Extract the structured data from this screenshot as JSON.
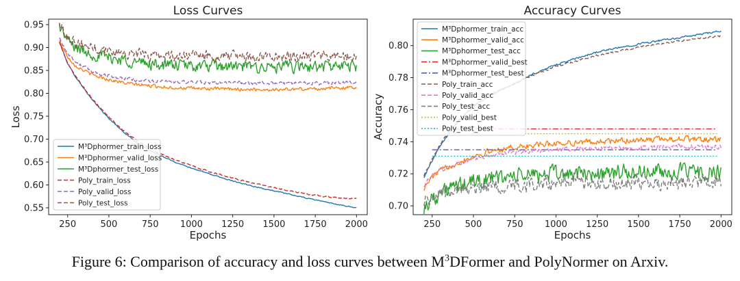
{
  "figure": {
    "caption_prefix": "Figure 6: Comparison of accuracy and loss curves between M",
    "caption_sup": "3",
    "caption_suffix": "DFormer and PolyNormer on Arxiv."
  },
  "chart_data": [
    {
      "type": "line",
      "title": "Loss Curves",
      "xlabel": "Epochs",
      "ylabel": "Loss",
      "xlim": [
        135,
        2065
      ],
      "ylim": [
        0.535,
        0.962
      ],
      "xticks": [
        250,
        500,
        750,
        1000,
        1250,
        1500,
        1750,
        2000
      ],
      "yticks": [
        0.55,
        0.6,
        0.65,
        0.7,
        0.75,
        0.8,
        0.85,
        0.9,
        0.95
      ],
      "grid": false,
      "legend_position": "lower-left",
      "series": [
        {
          "name": "M³Dphormer_train_loss",
          "color": "#1f77b4",
          "style": "solid",
          "x": [
            200,
            250,
            300,
            400,
            500,
            600,
            700,
            800,
            900,
            1000,
            1100,
            1200,
            1300,
            1400,
            1500,
            1600,
            1700,
            1800,
            1900,
            2000
          ],
          "y": [
            0.912,
            0.865,
            0.835,
            0.785,
            0.745,
            0.712,
            0.685,
            0.666,
            0.65,
            0.637,
            0.625,
            0.614,
            0.604,
            0.595,
            0.587,
            0.579,
            0.571,
            0.564,
            0.556,
            0.55
          ],
          "noise": 0.0015
        },
        {
          "name": "M³Dphormer_valid_loss",
          "color": "#ff7f0e",
          "style": "solid",
          "x": [
            200,
            250,
            300,
            400,
            500,
            600,
            700,
            800,
            900,
            1000,
            1250,
            1500,
            1750,
            2000
          ],
          "y": [
            0.915,
            0.88,
            0.86,
            0.84,
            0.83,
            0.822,
            0.818,
            0.815,
            0.812,
            0.811,
            0.809,
            0.808,
            0.81,
            0.813
          ],
          "noise": 0.005
        },
        {
          "name": "M³Dphormer_test_loss",
          "color": "#2ca02c",
          "style": "solid",
          "x": [
            200,
            250,
            300,
            400,
            500,
            600,
            700,
            800,
            1000,
            1250,
            1500,
            1750,
            2000
          ],
          "y": [
            0.948,
            0.915,
            0.9,
            0.885,
            0.878,
            0.872,
            0.866,
            0.863,
            0.86,
            0.858,
            0.857,
            0.858,
            0.86
          ],
          "noise": 0.018
        },
        {
          "name": "Poly_train_loss",
          "color": "#d62728",
          "style": "dashed",
          "x": [
            200,
            250,
            300,
            400,
            500,
            600,
            700,
            800,
            900,
            1000,
            1100,
            1200,
            1300,
            1400,
            1500,
            1600,
            1700,
            1800,
            1900,
            2000
          ],
          "y": [
            0.912,
            0.866,
            0.836,
            0.787,
            0.748,
            0.715,
            0.69,
            0.67,
            0.655,
            0.642,
            0.63,
            0.62,
            0.61,
            0.602,
            0.594,
            0.587,
            0.58,
            0.575,
            0.571,
            0.57
          ],
          "noise": 0.002
        },
        {
          "name": "Poly_valid_loss",
          "color": "#9467bd",
          "style": "dashed",
          "x": [
            200,
            250,
            300,
            400,
            500,
            600,
            700,
            800,
            1000,
            1250,
            1500,
            1750,
            2000
          ],
          "y": [
            0.92,
            0.888,
            0.868,
            0.848,
            0.838,
            0.832,
            0.828,
            0.826,
            0.824,
            0.823,
            0.822,
            0.822,
            0.824
          ],
          "noise": 0.005
        },
        {
          "name": "Poly_test_loss",
          "color": "#8c564b",
          "style": "dashed",
          "x": [
            200,
            250,
            300,
            400,
            500,
            600,
            700,
            800,
            1000,
            1250,
            1500,
            1750,
            2000
          ],
          "y": [
            0.95,
            0.925,
            0.912,
            0.9,
            0.893,
            0.888,
            0.885,
            0.883,
            0.882,
            0.881,
            0.88,
            0.88,
            0.88
          ],
          "noise": 0.015
        }
      ]
    },
    {
      "type": "line",
      "title": "Accuracy Curves",
      "xlabel": "Epochs",
      "ylabel": "Accuracy",
      "xlim": [
        135,
        2065
      ],
      "ylim": [
        0.6945,
        0.8165
      ],
      "xticks": [
        250,
        500,
        750,
        1000,
        1250,
        1500,
        1750,
        2000
      ],
      "yticks": [
        0.7,
        0.72,
        0.74,
        0.76,
        0.78,
        0.8
      ],
      "grid": false,
      "legend_position": "upper-left",
      "series": [
        {
          "name": "M³Dphormer_train_acc",
          "color": "#1f77b4",
          "style": "solid",
          "x": [
            200,
            250,
            300,
            400,
            500,
            600,
            700,
            800,
            900,
            1000,
            1250,
            1500,
            1750,
            2000
          ],
          "y": [
            0.718,
            0.728,
            0.738,
            0.752,
            0.762,
            0.769,
            0.774,
            0.779,
            0.784,
            0.788,
            0.796,
            0.801,
            0.805,
            0.809
          ],
          "noise": 0.0008
        },
        {
          "name": "M³Dphormer_valid_acc",
          "color": "#ff7f0e",
          "style": "solid",
          "x": [
            200,
            250,
            300,
            400,
            500,
            600,
            700,
            800,
            1000,
            1250,
            1500,
            1750,
            2000
          ],
          "y": [
            0.711,
            0.718,
            0.722,
            0.727,
            0.731,
            0.734,
            0.736,
            0.737,
            0.739,
            0.74,
            0.741,
            0.742,
            0.741
          ],
          "noise": 0.0025
        },
        {
          "name": "M³Dphormer_test_acc",
          "color": "#2ca02c",
          "style": "solid",
          "x": [
            200,
            250,
            300,
            400,
            500,
            600,
            700,
            800,
            1000,
            1250,
            1500,
            1750,
            2000
          ],
          "y": [
            0.699,
            0.705,
            0.708,
            0.712,
            0.715,
            0.717,
            0.718,
            0.719,
            0.72,
            0.72,
            0.721,
            0.721,
            0.72
          ],
          "noise": 0.007
        },
        {
          "name": "M³Dphormer_valid_best",
          "color": "#d62728",
          "style": "dashdot",
          "x": [
            250,
            1975
          ],
          "y": [
            0.748,
            0.748
          ],
          "noise": 0
        },
        {
          "name": "M³Dphormer_test_best",
          "color": "#4a5fa8",
          "style": "dashdot",
          "x": [
            250,
            1975
          ],
          "y": [
            0.735,
            0.735
          ],
          "noise": 0
        },
        {
          "name": "Poly_train_acc",
          "color": "#8c564b",
          "style": "dashed",
          "x": [
            200,
            250,
            300,
            400,
            500,
            600,
            700,
            800,
            900,
            1000,
            1250,
            1500,
            1750,
            2000
          ],
          "y": [
            0.719,
            0.729,
            0.739,
            0.752,
            0.762,
            0.769,
            0.774,
            0.779,
            0.783,
            0.787,
            0.794,
            0.799,
            0.803,
            0.806
          ],
          "noise": 0.0008
        },
        {
          "name": "Poly_valid_acc",
          "color": "#e377c2",
          "style": "dashed",
          "x": [
            200,
            250,
            300,
            400,
            500,
            600,
            700,
            800,
            1000,
            1250,
            1500,
            1750,
            2000
          ],
          "y": [
            0.713,
            0.719,
            0.722,
            0.726,
            0.729,
            0.731,
            0.733,
            0.734,
            0.735,
            0.736,
            0.736,
            0.737,
            0.737
          ],
          "noise": 0.002
        },
        {
          "name": "Poly_test_acc",
          "color": "#7f7f7f",
          "style": "dashed",
          "x": [
            200,
            250,
            300,
            400,
            500,
            600,
            700,
            800,
            1000,
            1250,
            1500,
            1750,
            2000
          ],
          "y": [
            0.703,
            0.706,
            0.708,
            0.71,
            0.711,
            0.712,
            0.713,
            0.713,
            0.714,
            0.714,
            0.714,
            0.715,
            0.715
          ],
          "noise": 0.006
        },
        {
          "name": "Poly_valid_best",
          "color": "#bcbd22",
          "style": "dotted",
          "x": [
            250,
            1975
          ],
          "y": [
            0.745,
            0.745
          ],
          "noise": 0
        },
        {
          "name": "Poly_test_best",
          "color": "#17becf",
          "style": "dotted",
          "x": [
            250,
            1975
          ],
          "y": [
            0.731,
            0.731
          ],
          "noise": 0
        }
      ]
    }
  ]
}
